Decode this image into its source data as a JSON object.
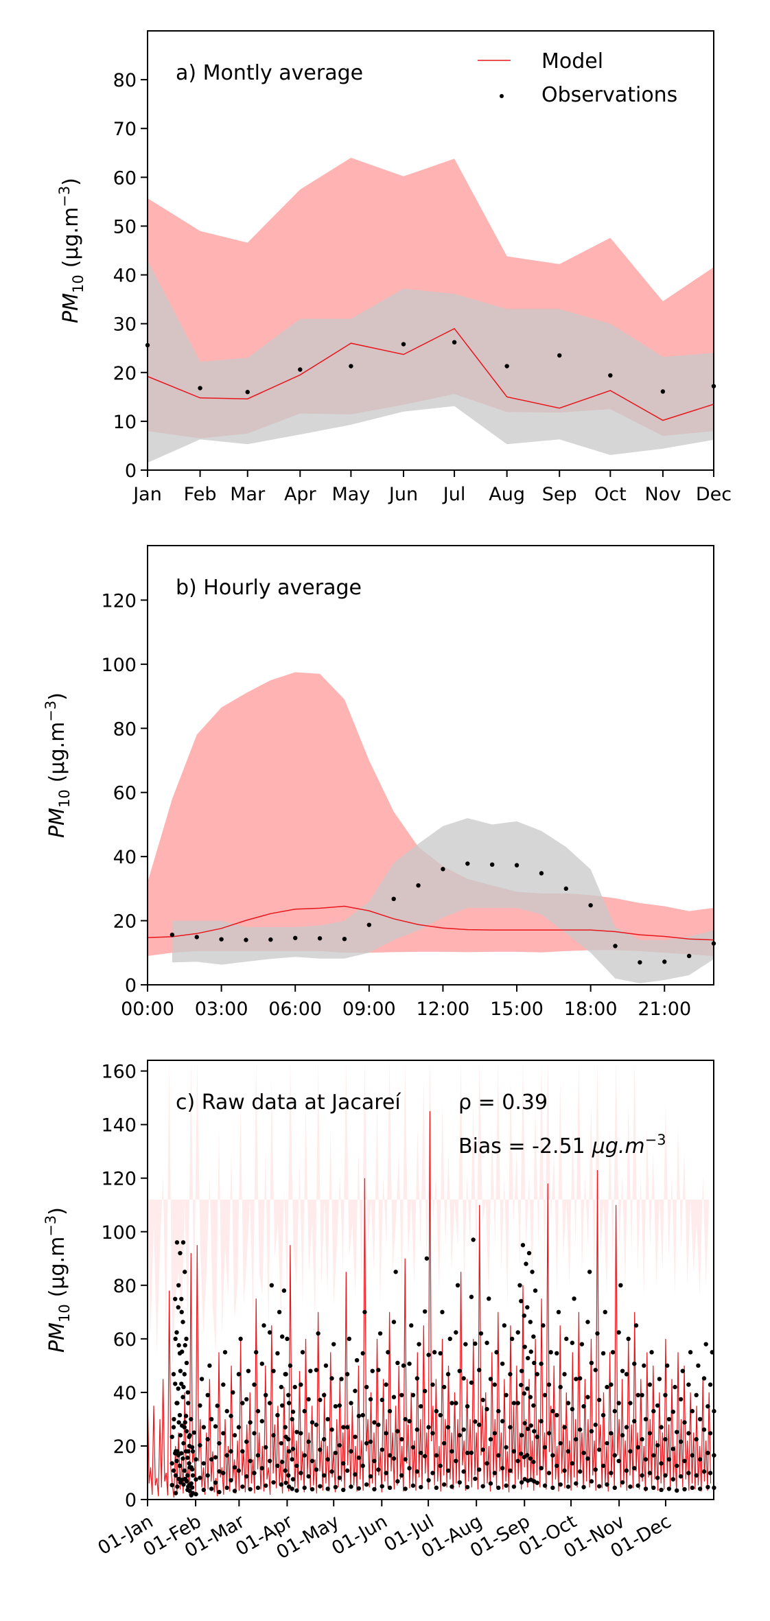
{
  "chart_data": [
    {
      "type": "line",
      "panel_label": "a) Montly average",
      "ylabel_main": "PM",
      "ylabel_sub": "10",
      "ylabel_unit": "(μg.m",
      "ylabel_exp": "−3",
      "ylabel_close": ")",
      "ylim": [
        0,
        90
      ],
      "yticks": [
        0,
        10,
        20,
        30,
        40,
        50,
        60,
        70,
        80
      ],
      "categories": [
        "Jan",
        "Feb",
        "Mar",
        "Apr",
        "May",
        "Jun",
        "Jul",
        "Aug",
        "Sep",
        "Oct",
        "Nov",
        "Dec"
      ],
      "x": [
        1,
        2,
        3,
        4,
        5,
        6,
        7,
        8,
        9,
        10,
        11,
        12
      ],
      "x_positions_days": [
        0,
        31,
        59,
        90,
        120,
        151,
        181,
        212,
        243,
        273,
        304,
        334
      ],
      "xlim_days": [
        0,
        334
      ],
      "legend": {
        "placement": "top-right",
        "model_label": "Model",
        "obs_label": "Observations"
      },
      "colors": {
        "model": "#e8151b",
        "model_band": "#ffb3b3",
        "obs": "#000000",
        "obs_band": "#c8c8c8"
      },
      "series": [
        {
          "name": "Model",
          "values": [
            19.2,
            14.8,
            14.6,
            19.5,
            26.0,
            23.7,
            29.0,
            15.0,
            12.7,
            16.3,
            10.2,
            13.5
          ]
        },
        {
          "name": "Observations",
          "values": [
            25.6,
            16.8,
            16.0,
            20.6,
            21.3,
            25.8,
            26.2,
            21.3,
            23.5,
            19.4,
            16.1,
            17.2
          ]
        }
      ],
      "model_band": {
        "upper": [
          55.7,
          49.0,
          46.6,
          57.5,
          64.0,
          60.2,
          63.8,
          43.8,
          42.2,
          47.6,
          34.6,
          41.6
        ],
        "lower": [
          8.0,
          6.5,
          7.5,
          11.6,
          11.4,
          13.4,
          15.6,
          11.9,
          11.8,
          12.5,
          7.0,
          8.0
        ]
      },
      "obs_band": {
        "upper": [
          43.0,
          22.2,
          23.0,
          31.0,
          31.0,
          37.2,
          36.1,
          33.0,
          33.0,
          30.0,
          23.2,
          24.0
        ],
        "lower": [
          1.5,
          6.3,
          5.3,
          7.3,
          9.3,
          12.0,
          13.1,
          5.3,
          6.3,
          3.1,
          4.4,
          6.2
        ]
      }
    },
    {
      "type": "line",
      "panel_label": "b) Hourly average",
      "ylabel_main": "PM",
      "ylabel_sub": "10",
      "ylabel_unit": "(μg.m",
      "ylabel_exp": "−3",
      "ylabel_close": ")",
      "ylim": [
        0,
        137
      ],
      "yticks": [
        0,
        20,
        40,
        60,
        80,
        100,
        120
      ],
      "xlim": [
        0,
        23
      ],
      "xticks": [
        0,
        3,
        6,
        9,
        12,
        15,
        18,
        21
      ],
      "xtick_labels": [
        "00:00",
        "03:00",
        "06:00",
        "09:00",
        "12:00",
        "15:00",
        "18:00",
        "21:00"
      ],
      "colors": {
        "model": "#e8151b",
        "model_band": "#ffb3b3",
        "obs": "#000000",
        "obs_band": "#c8c8c8"
      },
      "model_x": [
        0,
        1,
        2,
        3,
        4,
        5,
        6,
        7,
        8,
        9,
        10,
        11,
        12,
        13,
        14,
        15,
        16,
        17,
        18,
        19,
        20,
        21,
        22,
        23
      ],
      "model_values": [
        14.7,
        15.0,
        16.0,
        17.6,
        20.1,
        22.2,
        23.6,
        23.9,
        24.5,
        23.1,
        20.6,
        18.8,
        17.7,
        17.2,
        17.1,
        17.1,
        17.1,
        17.1,
        17.1,
        16.6,
        15.6,
        15.1,
        14.3,
        14.0
      ],
      "model_band_upper": [
        32.0,
        58.0,
        78.0,
        86.5,
        91.0,
        95.0,
        97.5,
        97.0,
        89.0,
        70.0,
        54.0,
        43.0,
        37.0,
        33.0,
        31.0,
        29.0,
        28.5,
        28.5,
        28.0,
        27.0,
        25.5,
        24.5,
        23.0,
        24.0
      ],
      "model_band_lower": [
        9.0,
        10.0,
        10.5,
        10.5,
        10.5,
        10.5,
        10.5,
        10.5,
        10.0,
        10.0,
        10.2,
        10.3,
        10.3,
        10.2,
        10.3,
        10.3,
        10.1,
        10.5,
        10.8,
        10.8,
        10.5,
        10.0,
        9.5,
        9.0
      ],
      "obs_x": [
        1,
        2,
        3,
        4,
        5,
        6,
        7,
        8,
        9,
        10,
        11,
        12,
        13,
        14,
        15,
        16,
        17,
        18,
        19,
        20,
        21,
        22,
        23
      ],
      "obs_values": [
        15.6,
        14.9,
        14.2,
        14.0,
        14.1,
        14.6,
        14.5,
        14.3,
        18.7,
        26.8,
        31.0,
        36.1,
        37.8,
        37.5,
        37.3,
        34.8,
        30.0,
        24.8,
        12.1,
        7.0,
        7.2,
        9.0,
        12.9
      ],
      "obs_band_upper": [
        20.0,
        20.0,
        20.0,
        18.0,
        18.0,
        18.0,
        18.5,
        20.0,
        26.0,
        38.0,
        44.0,
        49.5,
        52.0,
        50.0,
        51.0,
        48.0,
        43.0,
        36.0,
        18.0,
        14.0,
        14.0,
        15.0,
        17.0
      ],
      "obs_band_lower": [
        7.0,
        7.2,
        6.3,
        7.2,
        8.1,
        8.7,
        8.2,
        8.2,
        10.0,
        14.0,
        17.0,
        21.0,
        24.0,
        24.0,
        24.0,
        22.0,
        16.0,
        10.0,
        2.0,
        0.5,
        1.5,
        3.0,
        8.0
      ]
    },
    {
      "type": "line",
      "panel_label": "c) Raw data at Jacareí",
      "rho_text": "ρ = 0.39",
      "bias_text": "Bias = -2.51",
      "bias_unit": "μg.m",
      "bias_exp": "−3",
      "ylabel_main": "PM",
      "ylabel_sub": "10",
      "ylabel_unit": "(μg.m",
      "ylabel_exp": "−3",
      "ylabel_close": ")",
      "ylim": [
        0,
        164
      ],
      "yticks": [
        0,
        20,
        40,
        60,
        80,
        100,
        120,
        140,
        160
      ],
      "xlim_days": [
        0,
        365
      ],
      "xtick_days": [
        0,
        31,
        59,
        90,
        120,
        151,
        181,
        212,
        243,
        273,
        304,
        334
      ],
      "xtick_labels": [
        "01-Jan",
        "01-Feb",
        "01-Mar",
        "01-Apr",
        "01-May",
        "01-Jun",
        "01-Jul",
        "01-Aug",
        "01-Sep",
        "01-Oct",
        "01-Nov",
        "01-Dec"
      ],
      "colors": {
        "model": "#e8151b",
        "model_light": "#ffd8d8",
        "obs": "#000000"
      },
      "model_trace_days": [
        0,
        2,
        4,
        6,
        8,
        10,
        12,
        14,
        16,
        18,
        20,
        22,
        24,
        26,
        28,
        30,
        32,
        34,
        36,
        38,
        40,
        42,
        44,
        46,
        48,
        50,
        52,
        54,
        56,
        58,
        60,
        62,
        64,
        66,
        68,
        70,
        72,
        74,
        76,
        78,
        80,
        82,
        84,
        86,
        88,
        90,
        92,
        94,
        96,
        98,
        100,
        102,
        104,
        106,
        108,
        110,
        112,
        114,
        116,
        118,
        120,
        122,
        124,
        126,
        128,
        130,
        132,
        134,
        136,
        138,
        140,
        142,
        144,
        146,
        148,
        150,
        152,
        154,
        156,
        158,
        160,
        162,
        164,
        166,
        168,
        170,
        172,
        174,
        176,
        178,
        180,
        182,
        184,
        186,
        188,
        190,
        192,
        194,
        196,
        198,
        200,
        202,
        204,
        206,
        208,
        210,
        212,
        214,
        216,
        218,
        220,
        222,
        224,
        226,
        228,
        230,
        232,
        234,
        236,
        238,
        240,
        242,
        244,
        246,
        248,
        250,
        252,
        254,
        256,
        258,
        260,
        262,
        264,
        266,
        268,
        270,
        272,
        274,
        276,
        278,
        280,
        282,
        284,
        286,
        288,
        290,
        292,
        294,
        296,
        298,
        300,
        302,
        304,
        306,
        308,
        310,
        312,
        314,
        316,
        318,
        320,
        322,
        324,
        326,
        328,
        330,
        332,
        334,
        336,
        338,
        340,
        342,
        344,
        346,
        348,
        350,
        352,
        354,
        356,
        358,
        360,
        362,
        364
      ],
      "model_trace_values": [
        40,
        12,
        35,
        8,
        30,
        45,
        10,
        78,
        5,
        20,
        25,
        15,
        40,
        12,
        92,
        18,
        95,
        30,
        12,
        25,
        45,
        18,
        8,
        55,
        12,
        30,
        20,
        50,
        15,
        22,
        60,
        18,
        28,
        40,
        15,
        75,
        25,
        20,
        50,
        12,
        65,
        28,
        35,
        15,
        42,
        20,
        95,
        30,
        22,
        48,
        18,
        60,
        25,
        35,
        15,
        70,
        22,
        40,
        20,
        55,
        18,
        30,
        45,
        25,
        85,
        28,
        35,
        20,
        50,
        22,
        120,
        30,
        40,
        25,
        60,
        18,
        45,
        30,
        70,
        25,
        35,
        50,
        20,
        90,
        28,
        40,
        22,
        55,
        30,
        65,
        25,
        145,
        35,
        45,
        20,
        60,
        30,
        50,
        25,
        40,
        30,
        85,
        22,
        45,
        30,
        60,
        25,
        110,
        35,
        40,
        20,
        55,
        30,
        70,
        25,
        45,
        18,
        65,
        35,
        50,
        25,
        80,
        30,
        45,
        22,
        60,
        30,
        75,
        25,
        118,
        35,
        50,
        20,
        65,
        28,
        40,
        22,
        55,
        30,
        70,
        25,
        45,
        30,
        60,
        22,
        123,
        28,
        40,
        20,
        55,
        25,
        110,
        30,
        45,
        22,
        60,
        28,
        70,
        25,
        45,
        20,
        55,
        30,
        50,
        22,
        40,
        25,
        60,
        28,
        45,
        20,
        55,
        30,
        50,
        22,
        40,
        25,
        35,
        20,
        45,
        22,
        40
      ],
      "obs_days": [
        17,
        18,
        19,
        20,
        21,
        22,
        23,
        24,
        25,
        26,
        27,
        28,
        30,
        35,
        40,
        45,
        50,
        55,
        60,
        65,
        70,
        75,
        80,
        85,
        88,
        90,
        92,
        95,
        100,
        105,
        110,
        115,
        120,
        125,
        130,
        135,
        140,
        145,
        150,
        155,
        160,
        165,
        170,
        175,
        180,
        185,
        190,
        195,
        200,
        205,
        210,
        215,
        220,
        225,
        230,
        235,
        240,
        242,
        244,
        246,
        248,
        250,
        255,
        260,
        265,
        270,
        275,
        280,
        285,
        290,
        295,
        300,
        305,
        310,
        315,
        320,
        325,
        330,
        335,
        340,
        345,
        350,
        355,
        360,
        364
      ],
      "obs_values": [
        30,
        60,
        96,
        80,
        92,
        70,
        96,
        85,
        60,
        40,
        20,
        30,
        25,
        45,
        50,
        35,
        55,
        40,
        60,
        48,
        55,
        65,
        80,
        70,
        78,
        60,
        50,
        42,
        55,
        48,
        62,
        50,
        58,
        45,
        60,
        52,
        70,
        48,
        62,
        55,
        85,
        50,
        65,
        58,
        90,
        55,
        70,
        60,
        80,
        58,
        97,
        62,
        75,
        55,
        65,
        60,
        80,
        95,
        88,
        92,
        85,
        78,
        65,
        55,
        70,
        60,
        75,
        58,
        85,
        62,
        70,
        55,
        80,
        60,
        65,
        50,
        55,
        45,
        50,
        42,
        48,
        55,
        50,
        58,
        55
      ]
    }
  ]
}
